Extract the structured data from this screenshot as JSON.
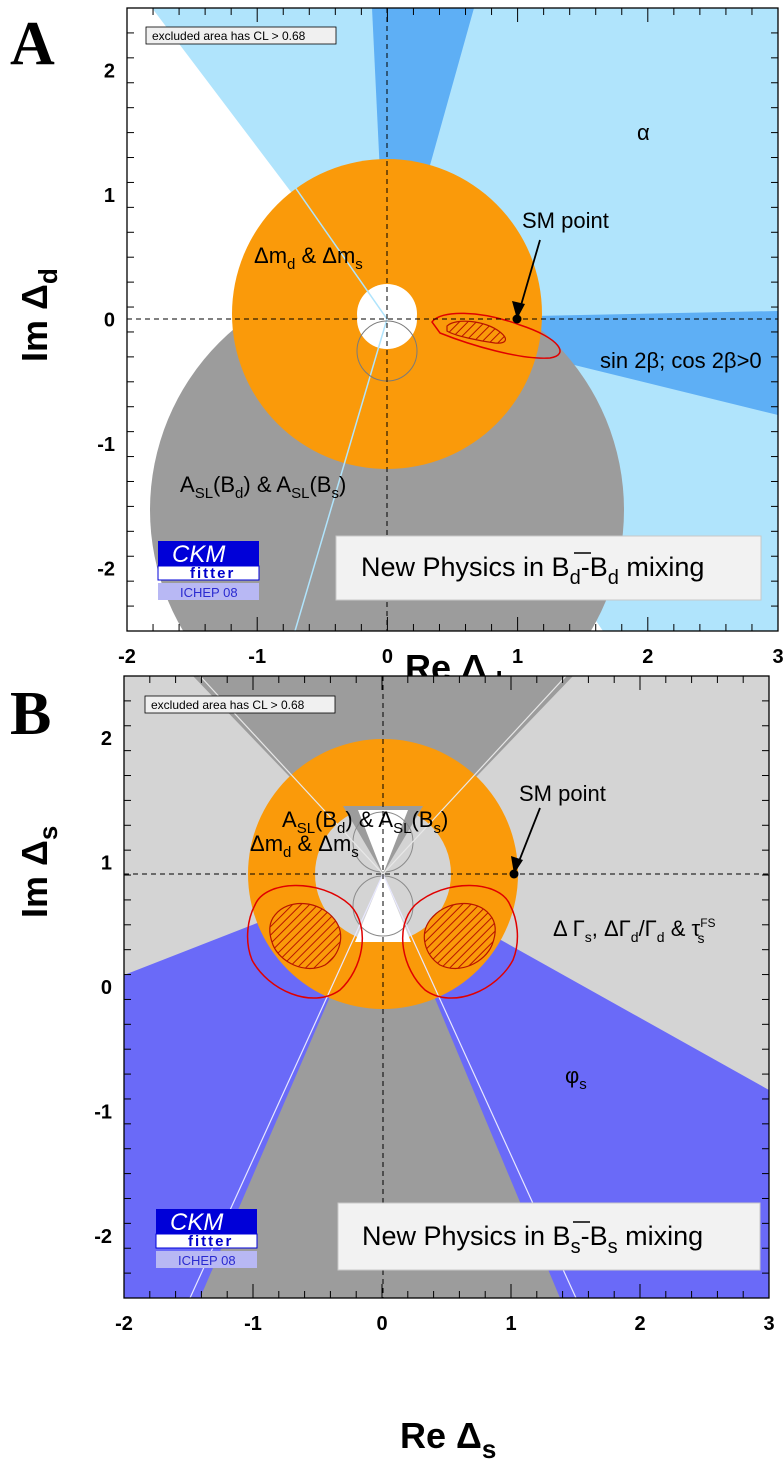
{
  "chart_data": [
    {
      "type": "contour",
      "panel_letter": "A",
      "xlabel_main": "Re Δ",
      "xlabel_sub": "d",
      "ylabel_main": "Im Δ",
      "ylabel_sub": "d",
      "xlim": [
        -2,
        3
      ],
      "ylim": [
        -2.5,
        2.5
      ],
      "x_ticks": [
        -2,
        -1,
        0,
        1,
        2,
        3
      ],
      "y_ticks": [
        -2,
        -1,
        0,
        1,
        2
      ],
      "cl_note": "excluded area has CL > 0.68",
      "sm_point": {
        "x": 1,
        "y": 0
      },
      "sm_label": "SM point",
      "title_parts": [
        "New Physics in B",
        "d",
        "-B",
        "d",
        " mixing"
      ],
      "logo": {
        "main": "CKM",
        "sub": "fitter",
        "ichep": "ICHEP 08"
      },
      "region_labels": {
        "alpha": "α",
        "dm_p1": "Δm",
        "dm_s1": "d",
        "dm_p2": " & Δm",
        "dm_s2": "s",
        "asl_p1": "A",
        "asl_s1": "SL",
        "asl_p2": "(B",
        "asl_s2": "d",
        "asl_p3": ") & A",
        "asl_s3": "SL",
        "asl_p4": "(B",
        "asl_s4": "s",
        "asl_p5": ")",
        "sin2b": "sin 2β; cos 2β>0"
      },
      "colors": {
        "alpha_light": "#b0e4fc",
        "alpha_dark": "#5eaff5",
        "sin2b": "#b0e4fc",
        "dm": "#fa9a0a",
        "asl": "#9c9c9c",
        "contour": "#e00000"
      }
    },
    {
      "type": "contour",
      "panel_letter": "B",
      "xlabel_main": "Re Δ",
      "xlabel_sub": "s",
      "ylabel_main": "Im Δ",
      "ylabel_sub": "s",
      "xlim": [
        -2,
        3
      ],
      "ylim": [
        -2.5,
        2.5
      ],
      "x_ticks": [
        -2,
        -1,
        0,
        1,
        2,
        3
      ],
      "y_ticks": [
        -2,
        -1,
        0,
        1,
        2
      ],
      "cl_note": "excluded area has CL > 0.68",
      "sm_point": {
        "x": 1,
        "y": 0
      },
      "sm_label": "SM point",
      "title_parts": [
        "New Physics in B",
        "s",
        "-B",
        "s",
        " mixing"
      ],
      "logo": {
        "main": "CKM",
        "sub": "fitter",
        "ichep": "ICHEP 08"
      },
      "region_labels": {
        "dm_p1": "Δm",
        "dm_s1": "d",
        "dm_p2": " & Δm",
        "dm_s2": "s",
        "asl_p1": "A",
        "asl_s1": "SL",
        "asl_p2": "(B",
        "asl_s2": "d",
        "asl_p3": ") & A",
        "asl_s3": "SL",
        "asl_p4": "(B",
        "asl_s4": "s",
        "asl_p5": ")",
        "gamma_p1": "Δ Γ",
        "gamma_s1": "s",
        "gamma_p2": ", ΔΓ",
        "gamma_s2": "d",
        "gamma_p3": "/Γ",
        "gamma_s3": "d",
        "gamma_p4": " & τ",
        "gamma_sup": "FS",
        "gamma_s4": "s",
        "phi_p1": "φ",
        "phi_s1": "s"
      },
      "colors": {
        "background": "#d4d4d4",
        "asl": "#9c9c9c",
        "dm": "#fa9a0a",
        "phi": "#6a6af8",
        "contour": "#e00000"
      }
    }
  ]
}
